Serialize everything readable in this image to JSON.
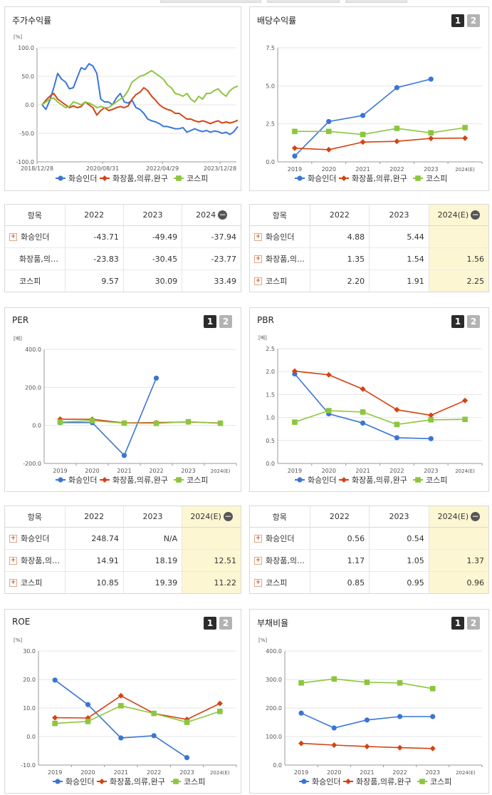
{
  "panels": {
    "stock": {
      "title": "주가수익률",
      "unit": "[%]",
      "ylim": [
        -100,
        100
      ],
      "yticks": [
        "100.0",
        "50.0",
        "0.0",
        "-50.0",
        "-100.0"
      ],
      "xticks": [
        "2018/12/28",
        "2020/08/31",
        "2022/04/29",
        "2023/12/28"
      ]
    },
    "dividend": {
      "title": "배당수익률",
      "btn1": "1",
      "btn2": "2"
    },
    "per": {
      "title": "PER",
      "btn1": "1",
      "btn2": "2"
    },
    "pbr": {
      "title": "PBR",
      "btn1": "1",
      "btn2": "2"
    },
    "roe": {
      "title": "ROE",
      "btn1": "1",
      "btn2": "2"
    },
    "debt": {
      "title": "부채비율",
      "btn1": "1",
      "btn2": "2"
    }
  },
  "legend": {
    "company": "화승인더",
    "industry": "화장품,의류,완구",
    "index": "코스피"
  },
  "colors": {
    "company": "#3a75d6",
    "industry": "#d44312",
    "index": "#8cc63e",
    "grid": "#e6e6e6",
    "axis": "#999999"
  },
  "chart_data": [
    {
      "id": "stock",
      "type": "line",
      "ylabel": "[%]",
      "ylim": [
        -100,
        100
      ],
      "yticks": [
        100,
        50,
        0,
        -50,
        -100
      ],
      "xtick_labels": [
        "2018/12/28",
        "2020/08/31",
        "2022/04/29",
        "2023/12/28"
      ],
      "series": [
        {
          "name": "화승인더",
          "values": [
            0,
            -8,
            8,
            30,
            55,
            45,
            40,
            28,
            30,
            48,
            65,
            62,
            72,
            68,
            55,
            10,
            5,
            5,
            0,
            12,
            20,
            5,
            3,
            8,
            -5,
            -8,
            -15,
            -25,
            -28,
            -30,
            -33,
            -38,
            -38,
            -40,
            -42,
            -42,
            -40,
            -48,
            -45,
            -42,
            -45,
            -47,
            -45,
            -48,
            -46,
            -47,
            -50,
            -48,
            -52,
            -47,
            -38
          ]
        },
        {
          "name": "화장품,의류,완구",
          "values": [
            0,
            8,
            15,
            20,
            10,
            5,
            0,
            -5,
            -2,
            -5,
            -3,
            5,
            0,
            -5,
            -18,
            -10,
            -5,
            -10,
            -8,
            -5,
            -3,
            -5,
            -2,
            10,
            18,
            22,
            30,
            25,
            15,
            8,
            0,
            -5,
            -8,
            -10,
            -15,
            -15,
            -20,
            -25,
            -25,
            -28,
            -30,
            -28,
            -30,
            -33,
            -30,
            -28,
            -32,
            -30,
            -32,
            -30,
            -27
          ]
        },
        {
          "name": "코스피",
          "values": [
            0,
            5,
            10,
            12,
            5,
            0,
            -5,
            -3,
            5,
            3,
            0,
            5,
            3,
            0,
            -5,
            -3,
            -5,
            -5,
            0,
            5,
            10,
            15,
            25,
            40,
            45,
            50,
            52,
            56,
            60,
            55,
            50,
            45,
            35,
            30,
            20,
            18,
            15,
            20,
            10,
            5,
            15,
            10,
            20,
            20,
            25,
            28,
            20,
            15,
            25,
            30,
            33
          ]
        }
      ]
    },
    {
      "id": "dividend",
      "type": "line",
      "ylim": [
        0,
        7.5
      ],
      "yticks": [
        7.5,
        5.0,
        2.5,
        0.0
      ],
      "categories": [
        "2019",
        "2020",
        "2021",
        "2022",
        "2023",
        "2024(E)"
      ],
      "series": [
        {
          "name": "화승인더",
          "values": [
            0.38,
            2.65,
            3.05,
            4.88,
            5.44,
            null
          ]
        },
        {
          "name": "화장품,의류,완구",
          "values": [
            0.9,
            0.8,
            1.3,
            1.35,
            1.54,
            1.56
          ]
        },
        {
          "name": "코스피",
          "values": [
            2.0,
            2.0,
            1.8,
            2.2,
            1.91,
            2.25
          ]
        }
      ]
    },
    {
      "id": "per",
      "type": "line",
      "ylabel": "[배]",
      "ylim": [
        -200,
        400
      ],
      "yticks": [
        400.0,
        200.0,
        0.0,
        -200.0
      ],
      "categories": [
        "2019",
        "2020",
        "2021",
        "2022",
        "2023",
        "2024(E)"
      ],
      "series": [
        {
          "name": "화승인더",
          "values": [
            15,
            15,
            -158,
            248.74,
            null,
            null
          ]
        },
        {
          "name": "화장품,의류,완구",
          "values": [
            33,
            32,
            13,
            14.91,
            18.19,
            12.51
          ]
        },
        {
          "name": "코스피",
          "values": [
            18,
            25,
            12,
            10.85,
            19.39,
            11.22
          ]
        }
      ]
    },
    {
      "id": "pbr",
      "type": "line",
      "ylabel": "[배]",
      "ylim": [
        0,
        2.5
      ],
      "yticks": [
        2.5,
        2.0,
        1.5,
        1.0,
        0.5,
        0.0
      ],
      "categories": [
        "2019",
        "2020",
        "2021",
        "2022",
        "2023",
        "2024(E)"
      ],
      "series": [
        {
          "name": "화승인더",
          "values": [
            1.95,
            1.08,
            0.88,
            0.56,
            0.54,
            null
          ]
        },
        {
          "name": "화장품,의류,완구",
          "values": [
            2.01,
            1.93,
            1.62,
            1.17,
            1.05,
            1.37
          ]
        },
        {
          "name": "코스피",
          "values": [
            0.9,
            1.15,
            1.12,
            0.85,
            0.95,
            0.96
          ]
        }
      ]
    },
    {
      "id": "roe",
      "type": "line",
      "ylabel": "[%]",
      "ylim": [
        -10,
        30
      ],
      "yticks": [
        30.0,
        20.0,
        10.0,
        0.0,
        -10.0
      ],
      "categories": [
        "2019",
        "2020",
        "2021",
        "2022",
        "2023",
        "2024(E)"
      ],
      "series": [
        {
          "name": "화승인더",
          "values": [
            19.8,
            11.2,
            -0.5,
            0.3,
            -7.4,
            null
          ]
        },
        {
          "name": "화장품,의류,완구",
          "values": [
            6.6,
            6.5,
            14.3,
            8.1,
            6.0,
            11.6
          ]
        },
        {
          "name": "코스피",
          "values": [
            4.6,
            5.3,
            10.8,
            8.1,
            5.0,
            8.8
          ]
        }
      ]
    },
    {
      "id": "debt",
      "type": "line",
      "ylabel": "[%]",
      "ylim": [
        0,
        400
      ],
      "yticks": [
        400.0,
        300.0,
        200.0,
        100.0,
        0.0
      ],
      "categories": [
        "2019",
        "2020",
        "2021",
        "2022",
        "2023",
        "2024(E)"
      ],
      "series": [
        {
          "name": "화승인더",
          "values": [
            182,
            130,
            158,
            170,
            170,
            null
          ]
        },
        {
          "name": "화장품,의류,완구",
          "values": [
            76,
            70,
            65,
            61,
            58,
            null
          ]
        },
        {
          "name": "코스피",
          "values": [
            288,
            302,
            290,
            288,
            268,
            null
          ]
        }
      ]
    }
  ],
  "tables": {
    "stock": {
      "headers": [
        "항목",
        "2022",
        "2023",
        "2024"
      ],
      "rows": [
        {
          "label": "화승인더",
          "cells": [
            "-43.71",
            "-49.49",
            "-37.94"
          ]
        },
        {
          "label": "화장품,의…",
          "cells": [
            "-23.83",
            "-30.45",
            "-23.77"
          ]
        },
        {
          "label": "코스피",
          "cells": [
            "9.57",
            "30.09",
            "33.49"
          ]
        }
      ]
    },
    "dividend": {
      "headers": [
        "항목",
        "2022",
        "2023",
        "2024(E)"
      ],
      "rows": [
        {
          "label": "화승인더",
          "cells": [
            "4.88",
            "5.44",
            ""
          ]
        },
        {
          "label": "화장품,의…",
          "cells": [
            "1.35",
            "1.54",
            "1.56"
          ]
        },
        {
          "label": "코스피",
          "cells": [
            "2.20",
            "1.91",
            "2.25"
          ]
        }
      ]
    },
    "per": {
      "headers": [
        "항목",
        "2022",
        "2023",
        "2024(E)"
      ],
      "rows": [
        {
          "label": "화승인더",
          "cells": [
            "248.74",
            "N/A",
            ""
          ]
        },
        {
          "label": "화장품,의…",
          "cells": [
            "14.91",
            "18.19",
            "12.51"
          ]
        },
        {
          "label": "코스피",
          "cells": [
            "10.85",
            "19.39",
            "11.22"
          ]
        }
      ]
    },
    "pbr": {
      "headers": [
        "항목",
        "2022",
        "2023",
        "2024(E)"
      ],
      "rows": [
        {
          "label": "화승인더",
          "cells": [
            "0.56",
            "0.54",
            ""
          ]
        },
        {
          "label": "화장품,의…",
          "cells": [
            "1.17",
            "1.05",
            "1.37"
          ]
        },
        {
          "label": "코스피",
          "cells": [
            "0.85",
            "0.95",
            "0.96"
          ]
        }
      ]
    }
  },
  "icons": {
    "expand": "plus-icon",
    "collapse": "minus-icon"
  }
}
